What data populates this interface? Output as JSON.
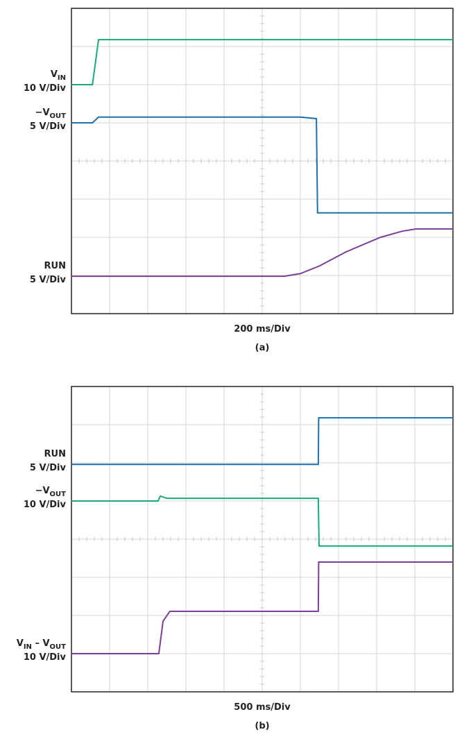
{
  "chart_data": [
    {
      "type": "line",
      "xlabel": "200 ms/Div",
      "caption": "(a)",
      "xlim": [
        0,
        10
      ],
      "ylim": [
        0,
        8
      ],
      "xticks": [
        0,
        1,
        2,
        3,
        4,
        5,
        6,
        7,
        8,
        9,
        10
      ],
      "yticks": [
        0,
        1,
        2,
        3,
        4,
        5,
        6,
        7,
        8
      ],
      "grid": true,
      "series": [
        {
          "name_parts": [
            {
              "text": "V"
            },
            {
              "sub": "IN"
            }
          ],
          "scale": "10 V/Div",
          "color": "#1aa97e",
          "x": [
            0,
            0.55,
            0.71,
            10
          ],
          "values": [
            6.0,
            6.0,
            7.18,
            7.18
          ]
        },
        {
          "name_parts": [
            {
              "text": "−V"
            },
            {
              "sub": "OUT"
            }
          ],
          "scale": "5 V/Div",
          "color": "#1f6fab",
          "x": [
            0,
            0.55,
            0.71,
            6.0,
            6.42,
            6.45,
            10
          ],
          "values": [
            5.0,
            5.0,
            5.15,
            5.15,
            5.11,
            2.64,
            2.64
          ]
        },
        {
          "name_parts": [
            {
              "text": "RUN"
            }
          ],
          "scale": "5 V/Div",
          "color": "#7b3f98",
          "x": [
            0,
            5.58,
            6.0,
            6.5,
            7.2,
            8.1,
            8.67,
            9.04,
            10
          ],
          "values": [
            0.98,
            0.98,
            1.05,
            1.25,
            1.62,
            2.0,
            2.16,
            2.22,
            2.22
          ]
        }
      ]
    },
    {
      "type": "line",
      "xlabel": "500 ms/Div",
      "caption": "(b)",
      "xlim": [
        0,
        10
      ],
      "ylim": [
        0,
        8
      ],
      "xticks": [
        0,
        1,
        2,
        3,
        4,
        5,
        6,
        7,
        8,
        9,
        10
      ],
      "yticks": [
        0,
        1,
        2,
        3,
        4,
        5,
        6,
        7,
        8
      ],
      "grid": true,
      "series": [
        {
          "name_parts": [
            {
              "text": "RUN"
            }
          ],
          "scale": "5 V/Div",
          "color": "#1f6fab",
          "x": [
            0,
            6.47,
            6.48,
            10
          ],
          "values": [
            5.96,
            5.96,
            7.18,
            7.18
          ]
        },
        {
          "name_parts": [
            {
              "text": "−V"
            },
            {
              "sub": "OUT"
            }
          ],
          "scale": "10 V/Div",
          "color": "#1aa97e",
          "x": [
            0,
            2.27,
            2.33,
            2.5,
            6.47,
            6.49,
            10
          ],
          "values": [
            5.0,
            5.0,
            5.13,
            5.07,
            5.07,
            3.82,
            3.82
          ]
        },
        {
          "name_parts": [
            {
              "text": "V"
            },
            {
              "sub": "IN"
            },
            {
              "text": " – V"
            },
            {
              "sub": "OUT"
            }
          ],
          "scale": "10 V/Div",
          "color": "#7b3f98",
          "x": [
            0,
            2.29,
            2.4,
            2.58,
            6.47,
            6.48,
            10
          ],
          "values": [
            1.0,
            1.0,
            1.85,
            2.11,
            2.11,
            3.4,
            3.4
          ]
        }
      ]
    }
  ]
}
